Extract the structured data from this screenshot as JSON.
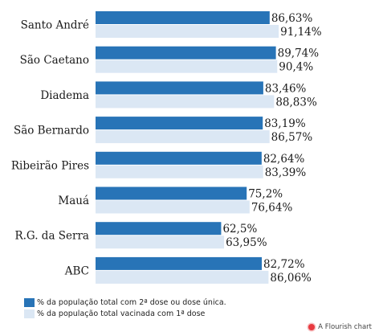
{
  "chart_data": {
    "type": "bar",
    "orientation": "horizontal",
    "categories": [
      "Santo André",
      "São Caetano",
      "Diadema",
      "São Bernardo",
      "Ribeirão Pires",
      "Mauá",
      "R.G. da Serra",
      "ABC"
    ],
    "series": [
      {
        "name": "% da população total com 2ª dose ou dose única.",
        "color": "#2874b7",
        "values": [
          86.63,
          89.74,
          83.46,
          83.19,
          82.64,
          75.2,
          62.5,
          82.72
        ],
        "labels": [
          "86,63%",
          "89,74%",
          "83,46%",
          "83,19%",
          "82,64%",
          "75,2%",
          "62,5%",
          "82,72%"
        ]
      },
      {
        "name": "% da população total vacinada com 1ª dose",
        "color": "#dbe7f4",
        "values": [
          91.14,
          90.4,
          88.83,
          86.57,
          83.39,
          76.64,
          63.95,
          86.06
        ],
        "labels": [
          "91,14%",
          "90,4%",
          "88,83%",
          "86,57%",
          "83,39%",
          "76,64%",
          "63,95%",
          "86,06%"
        ]
      }
    ],
    "xlim": [
      0,
      100
    ],
    "grid": false,
    "legend_position": "bottom-left"
  },
  "credit": {
    "text": "A Flourish chart",
    "dot_color": "#e8393f"
  }
}
